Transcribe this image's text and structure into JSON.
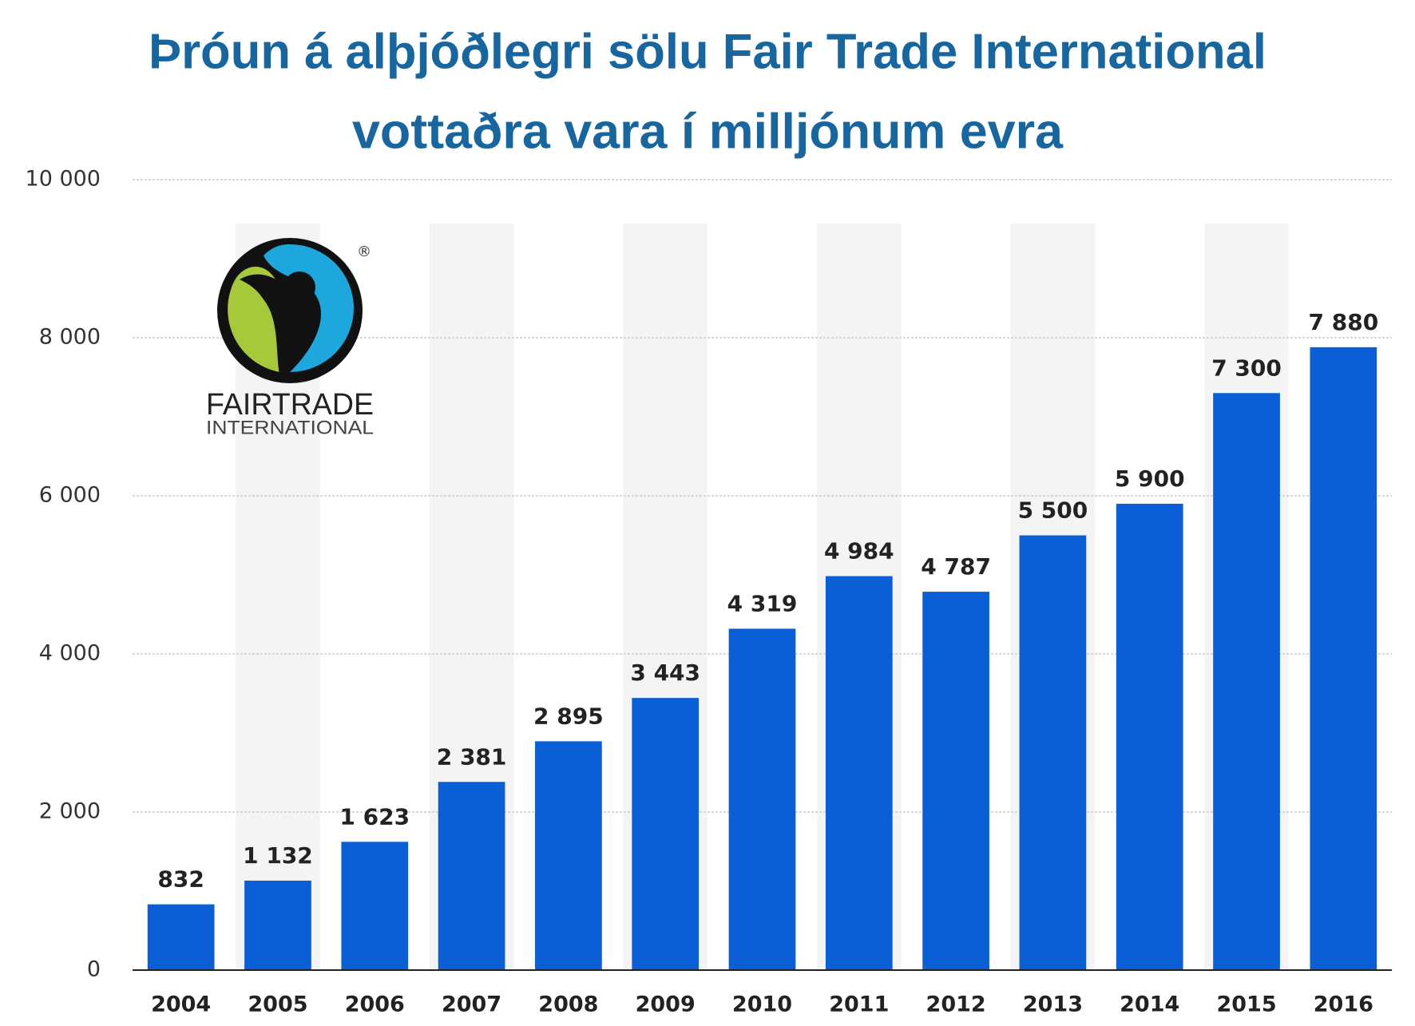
{
  "chart_data": {
    "type": "bar",
    "title": [
      "Þróun á alþjóðlegri sölu Fair Trade International",
      "vottaðra vara í milljónum evra"
    ],
    "categories": [
      "2004",
      "2005",
      "2006",
      "2007",
      "2008",
      "2009",
      "2010",
      "2011",
      "2012",
      "2013",
      "2014",
      "2015",
      "2016"
    ],
    "values": [
      832,
      1132,
      1623,
      2381,
      2895,
      3443,
      4319,
      4984,
      4787,
      5500,
      5900,
      7300,
      7880
    ],
    "value_labels": [
      "832",
      "1 132",
      "1 623",
      "2 381",
      "2 895",
      "3 443",
      "4 319",
      "4 984",
      "4 787",
      "5 500",
      "5 900",
      "7 300",
      "7 880"
    ],
    "color": "#0a5fd6",
    "ylim": [
      0,
      10000
    ],
    "yticks": [
      0,
      {
        "value": 2000,
        "label": "2 000"
      },
      {
        "value": 4000,
        "label": "4 000"
      },
      {
        "value": 6000,
        "label": "6 000"
      },
      {
        "value": 8000,
        "label": "8 000"
      },
      {
        "value": 10000,
        "label": "10 000"
      }
    ],
    "grid": true,
    "annotations": [
      "FAIRTRADE",
      "INTERNATIONAL",
      "®"
    ]
  }
}
